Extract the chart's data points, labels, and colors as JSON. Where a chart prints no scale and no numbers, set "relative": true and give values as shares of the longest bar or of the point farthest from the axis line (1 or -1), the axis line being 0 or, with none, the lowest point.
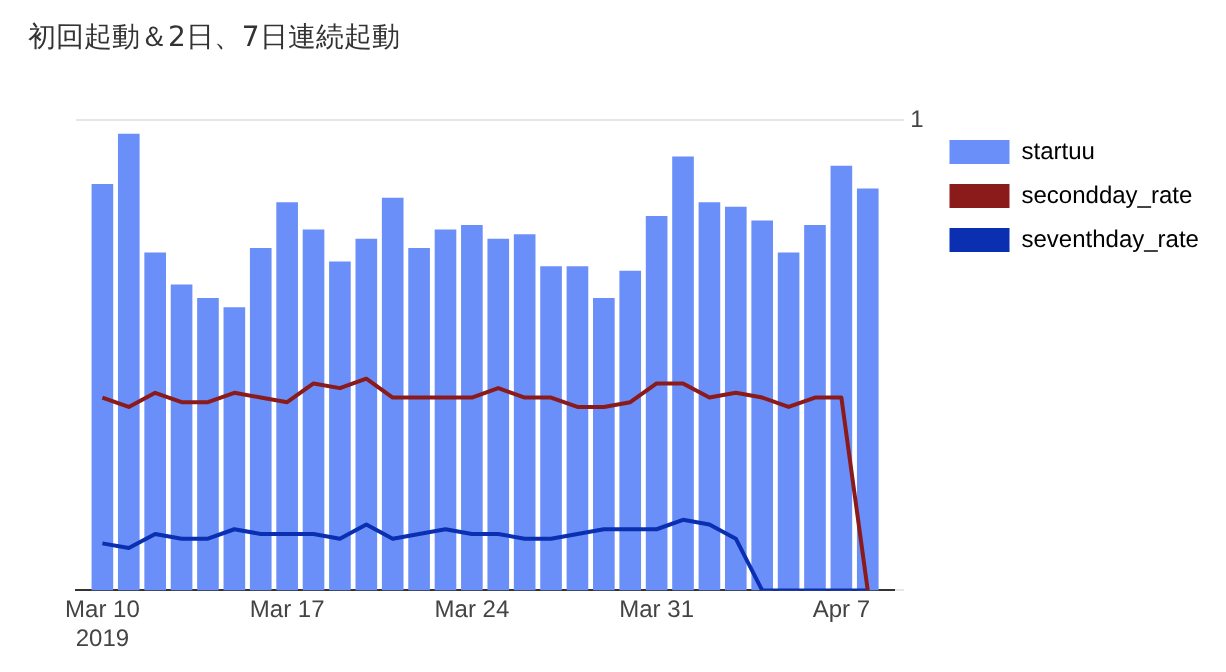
{
  "chart_data": {
    "type": "bar",
    "title": "初回起動＆2日、7日連続起動",
    "relative": true,
    "x": [
      "2019-03-10",
      "2019-03-11",
      "2019-03-12",
      "2019-03-13",
      "2019-03-14",
      "2019-03-15",
      "2019-03-16",
      "2019-03-17",
      "2019-03-18",
      "2019-03-19",
      "2019-03-20",
      "2019-03-21",
      "2019-03-22",
      "2019-03-23",
      "2019-03-24",
      "2019-03-25",
      "2019-03-26",
      "2019-03-27",
      "2019-03-28",
      "2019-03-29",
      "2019-03-30",
      "2019-03-31",
      "2019-04-01",
      "2019-04-02",
      "2019-04-03",
      "2019-04-04",
      "2019-04-05",
      "2019-04-06",
      "2019-04-07",
      "2019-04-08"
    ],
    "xlim": [
      "2019-03-09",
      "2019-04-09"
    ],
    "xticks": [
      {
        "value": "2019-03-10",
        "label": "Mar 10\n2019"
      },
      {
        "value": "2019-03-17",
        "label": "Mar 17"
      },
      {
        "value": "2019-03-24",
        "label": "Mar 24"
      },
      {
        "value": "2019-03-31",
        "label": "Mar 31"
      },
      {
        "value": "2019-04-07",
        "label": "Apr 7"
      }
    ],
    "y2lim": [
      0,
      1
    ],
    "y2ticks": [
      0,
      1
    ],
    "legend": "top right",
    "marker": "none",
    "line_style": "solid",
    "series": [
      {
        "name": "startuu",
        "color": "#6a8ff8",
        "values": [
          0.89,
          1,
          0.74,
          0.67,
          0.64,
          0.62,
          0.75,
          0.85,
          0.79,
          0.72,
          0.77,
          0.86,
          0.75,
          0.79,
          0.8,
          0.77,
          0.78,
          0.71,
          0.71,
          0.64,
          0.7,
          0.82,
          0.95,
          0.85,
          0.84,
          0.81,
          0.74,
          0.8,
          0.93,
          0.88
        ]
      },
      {
        "name": "secondday_rate",
        "type": "line",
        "axis": "y2",
        "color": "#8b1a1a",
        "values": [
          0.41,
          0.39,
          0.42,
          0.4,
          0.4,
          0.42,
          0.41,
          0.4,
          0.44,
          0.43,
          0.45,
          0.41,
          0.41,
          0.41,
          0.41,
          0.43,
          0.41,
          0.41,
          0.39,
          0.39,
          0.4,
          0.44,
          0.44,
          0.41,
          0.42,
          0.41,
          0.39,
          0.41,
          0.41,
          0
        ]
      },
      {
        "name": "seventhday_rate",
        "type": "line",
        "axis": "y2",
        "color": "#0a2fb0",
        "values": [
          0.1,
          0.09,
          0.12,
          0.11,
          0.11,
          0.13,
          0.12,
          0.12,
          0.12,
          0.11,
          0.14,
          0.11,
          0.12,
          0.13,
          0.12,
          0.12,
          0.11,
          0.11,
          0.12,
          0.13,
          0.13,
          0.13,
          0.15,
          0.14,
          0.11,
          0,
          0,
          0,
          0,
          0
        ]
      }
    ]
  }
}
